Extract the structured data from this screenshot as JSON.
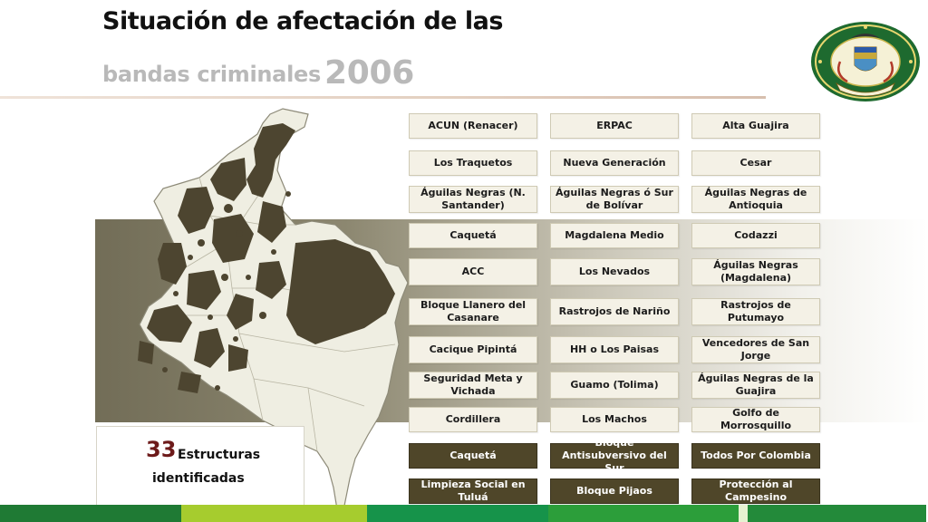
{
  "title": {
    "line1": "Situación de afectación de las",
    "line2": "bandas criminales",
    "year": "2006"
  },
  "seal": {
    "text_top": "REPÚBLICA DE COLOMBIA",
    "text_bottom": "POLICÍA NACIONAL",
    "motto": "DIOS Y PATRIA"
  },
  "summary": {
    "count": "33",
    "label_line1": "Estructuras",
    "label_line2": "identificadas"
  },
  "groups": [
    [
      "ACUN (Renacer)",
      "ERPAC",
      "Alta Guajira"
    ],
    [
      "Los Traquetos",
      "Nueva Generación",
      "Cesar"
    ],
    [
      "Águilas Negras (N. Santander)",
      "Águilas Negras ó Sur de Bolívar",
      "Águilas Negras de Antioquia"
    ],
    [
      "Caquetá",
      "Magdalena Medio",
      "Codazzi"
    ],
    [
      "ACC",
      "Los Nevados",
      "Águilas Negras (Magdalena)"
    ],
    [
      "Bloque Llanero del Casanare",
      "Rastrojos de Nariño",
      "Rastrojos de Putumayo"
    ],
    [
      "Cacique Pipintá",
      "HH o Los Paisas",
      "Vencedores de San Jorge"
    ],
    [
      "Seguridad Meta  y Vichada",
      "Guamo (Tolima)",
      "Águilas Negras de la Guajira"
    ],
    [
      "Cordillera",
      "Los Machos",
      "Golfo de Morrosquillo"
    ]
  ],
  "groups_dark": [
    [
      "Caquetá",
      "Bloque Antisubversivo del Sur",
      "Todos Por Colombia"
    ],
    [
      "Limpieza Social en Tuluá",
      "Bloque Pijaos",
      "Protección al Campesino"
    ]
  ],
  "colors": {
    "affected": "#4d4530",
    "unaffected": "#efeee2",
    "dark_box": "#4f4629",
    "light_box": "#f4f1e6",
    "count": "#6d1a1a"
  }
}
